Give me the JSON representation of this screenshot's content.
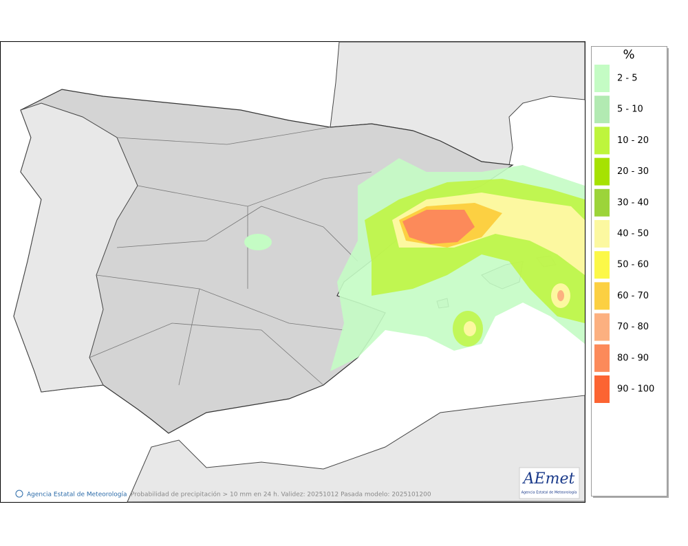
{
  "legend": {
    "title": "%",
    "items": [
      {
        "label": "2 - 5",
        "color": "#c4fcc4"
      },
      {
        "label": "5 - 10",
        "color": "#b2eab2"
      },
      {
        "label": "10 - 20",
        "color": "#bef53c"
      },
      {
        "label": "20 - 30",
        "color": "#a6e202"
      },
      {
        "label": "30 - 40",
        "color": "#9cd43a"
      },
      {
        "label": "40 - 50",
        "color": "#fcf8a0"
      },
      {
        "label": "50 - 60",
        "color": "#fcf848"
      },
      {
        "label": "60 - 70",
        "color": "#fcd042"
      },
      {
        "label": "70 - 80",
        "color": "#fcb080"
      },
      {
        "label": "80 - 90",
        "color": "#fc8a5a"
      },
      {
        "label": "90 - 100",
        "color": "#fc6432"
      }
    ]
  },
  "footer": {
    "agency": "Agencia Estatal de Meteorología",
    "caption": "Probabilidad de precipitación > 10 mm en 24 h. Validez: 20251012 Pasada modelo: 2025101200"
  },
  "logo": {
    "text": "AEmet",
    "subtitle": "Agencia Estatal de Meteorología"
  }
}
